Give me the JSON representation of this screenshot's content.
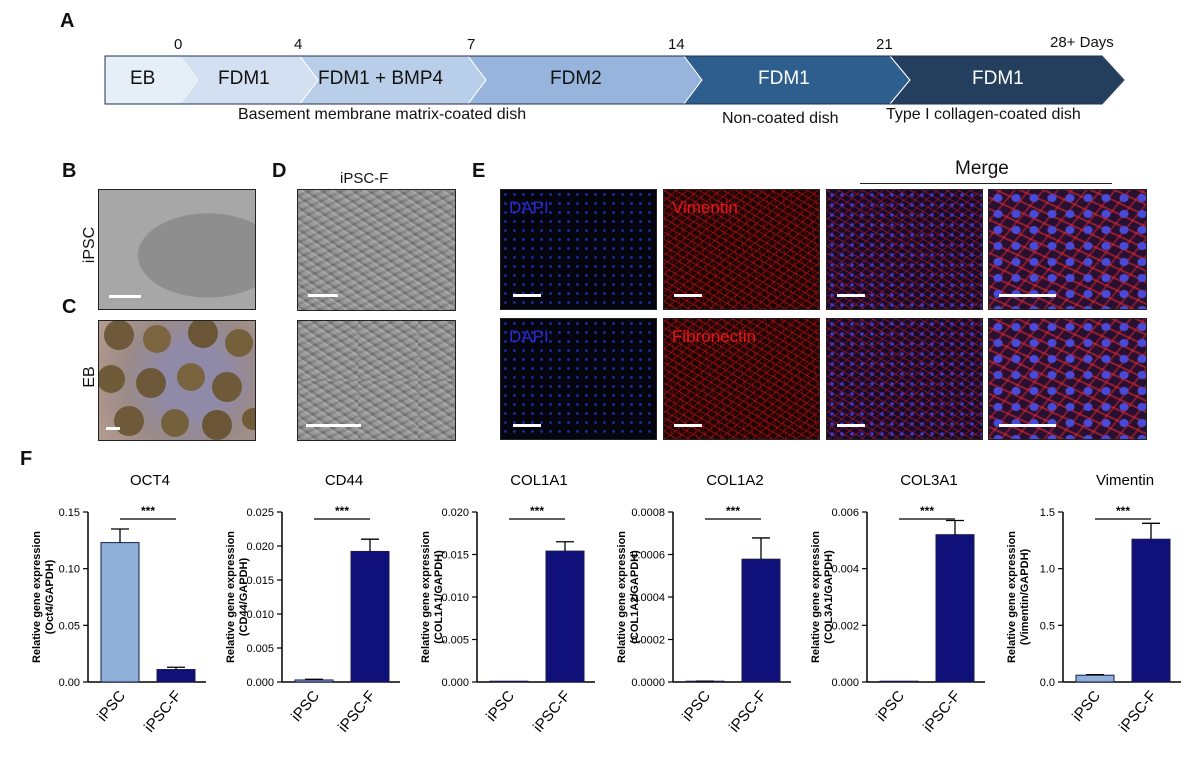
{
  "panels": {
    "a": "A",
    "b": "B",
    "c": "C",
    "d": "D",
    "e": "E",
    "f": "F"
  },
  "timeline": {
    "days": [
      "0",
      "4",
      "7",
      "14",
      "21",
      "28+ Days"
    ],
    "stages": [
      {
        "label": "EB",
        "color": "#e6eef8"
      },
      {
        "label": "FDM1",
        "color": "#d3e0f1"
      },
      {
        "label": "FDM1 + BMP4",
        "color": "#b9cfe9"
      },
      {
        "label": "FDM2",
        "color": "#97b5dc"
      },
      {
        "label": "FDM1",
        "color": "#2e5e8e"
      },
      {
        "label": "FDM1",
        "color": "#243e5e"
      }
    ],
    "dishes": [
      "Basement membrane matrix-coated dish",
      "Non-coated dish",
      "Type I collagen-coated dish"
    ]
  },
  "micro": {
    "row_ipsc": "iPSC",
    "row_eb": "EB",
    "ipscf_title": "iPSC-F",
    "merge_title": "Merge",
    "stains": {
      "dapi": "DAPI",
      "vimentin": "Vimentin",
      "fibronectin": "Fibronectin"
    }
  },
  "colors": {
    "ipsc_bar": "#8fb0d8",
    "ipscf_bar": "#10107a",
    "dapi_text": "#2a2ad0",
    "red_text": "#e01818"
  },
  "chart_data": [
    {
      "type": "bar",
      "title": "OCT4",
      "ylabel": [
        "Relative gene expression",
        "(Oct4/GAPDH)"
      ],
      "categories": [
        "iPSC",
        "iPSC-F"
      ],
      "values": [
        0.123,
        0.011
      ],
      "errors": [
        0.012,
        0.002
      ],
      "ylim": [
        0,
        0.15
      ],
      "yticks": [
        "0.00",
        "0.05",
        "0.10",
        "0.15"
      ],
      "significance": "***"
    },
    {
      "type": "bar",
      "title": "CD44",
      "ylabel": [
        "Relative gene expression",
        "(CD44/GAPDH)"
      ],
      "categories": [
        "iPSC",
        "iPSC-F"
      ],
      "values": [
        0.0003,
        0.0192
      ],
      "errors": [
        0.0001,
        0.0018
      ],
      "ylim": [
        0,
        0.025
      ],
      "yticks": [
        "0.000",
        "0.005",
        "0.010",
        "0.015",
        "0.020",
        "0.025"
      ],
      "significance": "***"
    },
    {
      "type": "bar",
      "title": "COL1A1",
      "ylabel": [
        "Relative gene expression",
        "(COL1A1/GAPDH)"
      ],
      "categories": [
        "iPSC",
        "iPSC-F"
      ],
      "values": [
        0.0,
        0.0154
      ],
      "errors": [
        0.0,
        0.0011
      ],
      "ylim": [
        0,
        0.02
      ],
      "yticks": [
        "0.000",
        "0.005",
        "0.010",
        "0.015",
        "0.020"
      ],
      "significance": "***"
    },
    {
      "type": "bar",
      "title": "COL1A2",
      "ylabel": [
        "Relative gene expression",
        "(COL1A2/GAPDH)"
      ],
      "categories": [
        "iPSC",
        "iPSC-F"
      ],
      "values": [
        3e-06,
        0.000578
      ],
      "errors": [
        1e-06,
        0.0001
      ],
      "ylim": [
        0,
        0.0008
      ],
      "yticks": [
        "0.0000",
        "0.0002",
        "0.0004",
        "0.0006",
        "0.0008"
      ],
      "significance": "***"
    },
    {
      "type": "bar",
      "title": "COL3A1",
      "ylabel": [
        "Relative gene expression",
        "(COL3A1/GAPDH)"
      ],
      "categories": [
        "iPSC",
        "iPSC-F"
      ],
      "values": [
        0.0,
        0.0052
      ],
      "errors": [
        0.0,
        0.0005
      ],
      "ylim": [
        0,
        0.006
      ],
      "yticks": [
        "0.000",
        "0.002",
        "0.004",
        "0.006"
      ],
      "significance": "***"
    },
    {
      "type": "bar",
      "title": "Vimentin",
      "ylabel": [
        "Relative gene expression",
        "(Vimentin/GAPDH)"
      ],
      "categories": [
        "iPSC",
        "iPSC-F"
      ],
      "values": [
        0.06,
        1.26
      ],
      "errors": [
        0.005,
        0.14
      ],
      "ylim": [
        0,
        1.5
      ],
      "yticks": [
        "0.0",
        "0.5",
        "1.0",
        "1.5"
      ],
      "significance": "***"
    }
  ]
}
